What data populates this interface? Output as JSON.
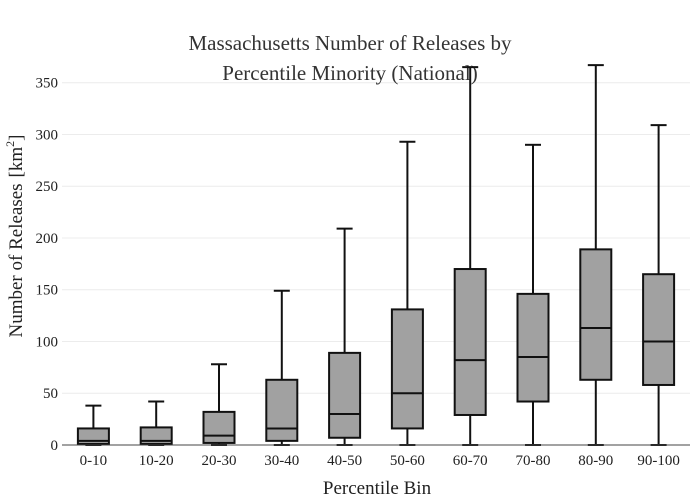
{
  "chart_data": {
    "type": "box",
    "title_line1": "Massachusetts Number of Releases by",
    "title_line2": "Percentile Minority (National)",
    "xlabel": "Percentile Bin",
    "ylabel_main": "Number of Releases",
    "ylabel_unit_base": "[km",
    "ylabel_unit_sup": "2",
    "ylabel_unit_close": "]",
    "ylim": [
      0,
      370
    ],
    "yticks": [
      0,
      50,
      100,
      150,
      200,
      250,
      300,
      350
    ],
    "grid": true,
    "categories": [
      "0-10",
      "10-20",
      "20-30",
      "30-40",
      "40-50",
      "50-60",
      "60-70",
      "70-80",
      "80-90",
      "90-100"
    ],
    "boxes": [
      {
        "min": 0,
        "q1": 1,
        "median": 4,
        "q3": 16,
        "max": 38
      },
      {
        "min": 0,
        "q1": 1,
        "median": 4,
        "q3": 17,
        "max": 42
      },
      {
        "min": 0,
        "q1": 2,
        "median": 9,
        "q3": 32,
        "max": 78
      },
      {
        "min": 0,
        "q1": 4,
        "median": 16,
        "q3": 63,
        "max": 149
      },
      {
        "min": 0,
        "q1": 7,
        "median": 30,
        "q3": 89,
        "max": 209
      },
      {
        "min": 0,
        "q1": 16,
        "median": 50,
        "q3": 131,
        "max": 293
      },
      {
        "min": 0,
        "q1": 29,
        "median": 82,
        "q3": 170,
        "max": 365
      },
      {
        "min": 0,
        "q1": 42,
        "median": 85,
        "q3": 146,
        "max": 290
      },
      {
        "min": 0,
        "q1": 63,
        "median": 113,
        "q3": 189,
        "max": 367
      },
      {
        "min": 0,
        "q1": 58,
        "median": 100,
        "q3": 165,
        "max": 309
      }
    ],
    "box_color": "#a1a1a1",
    "line_color": "#111111"
  }
}
